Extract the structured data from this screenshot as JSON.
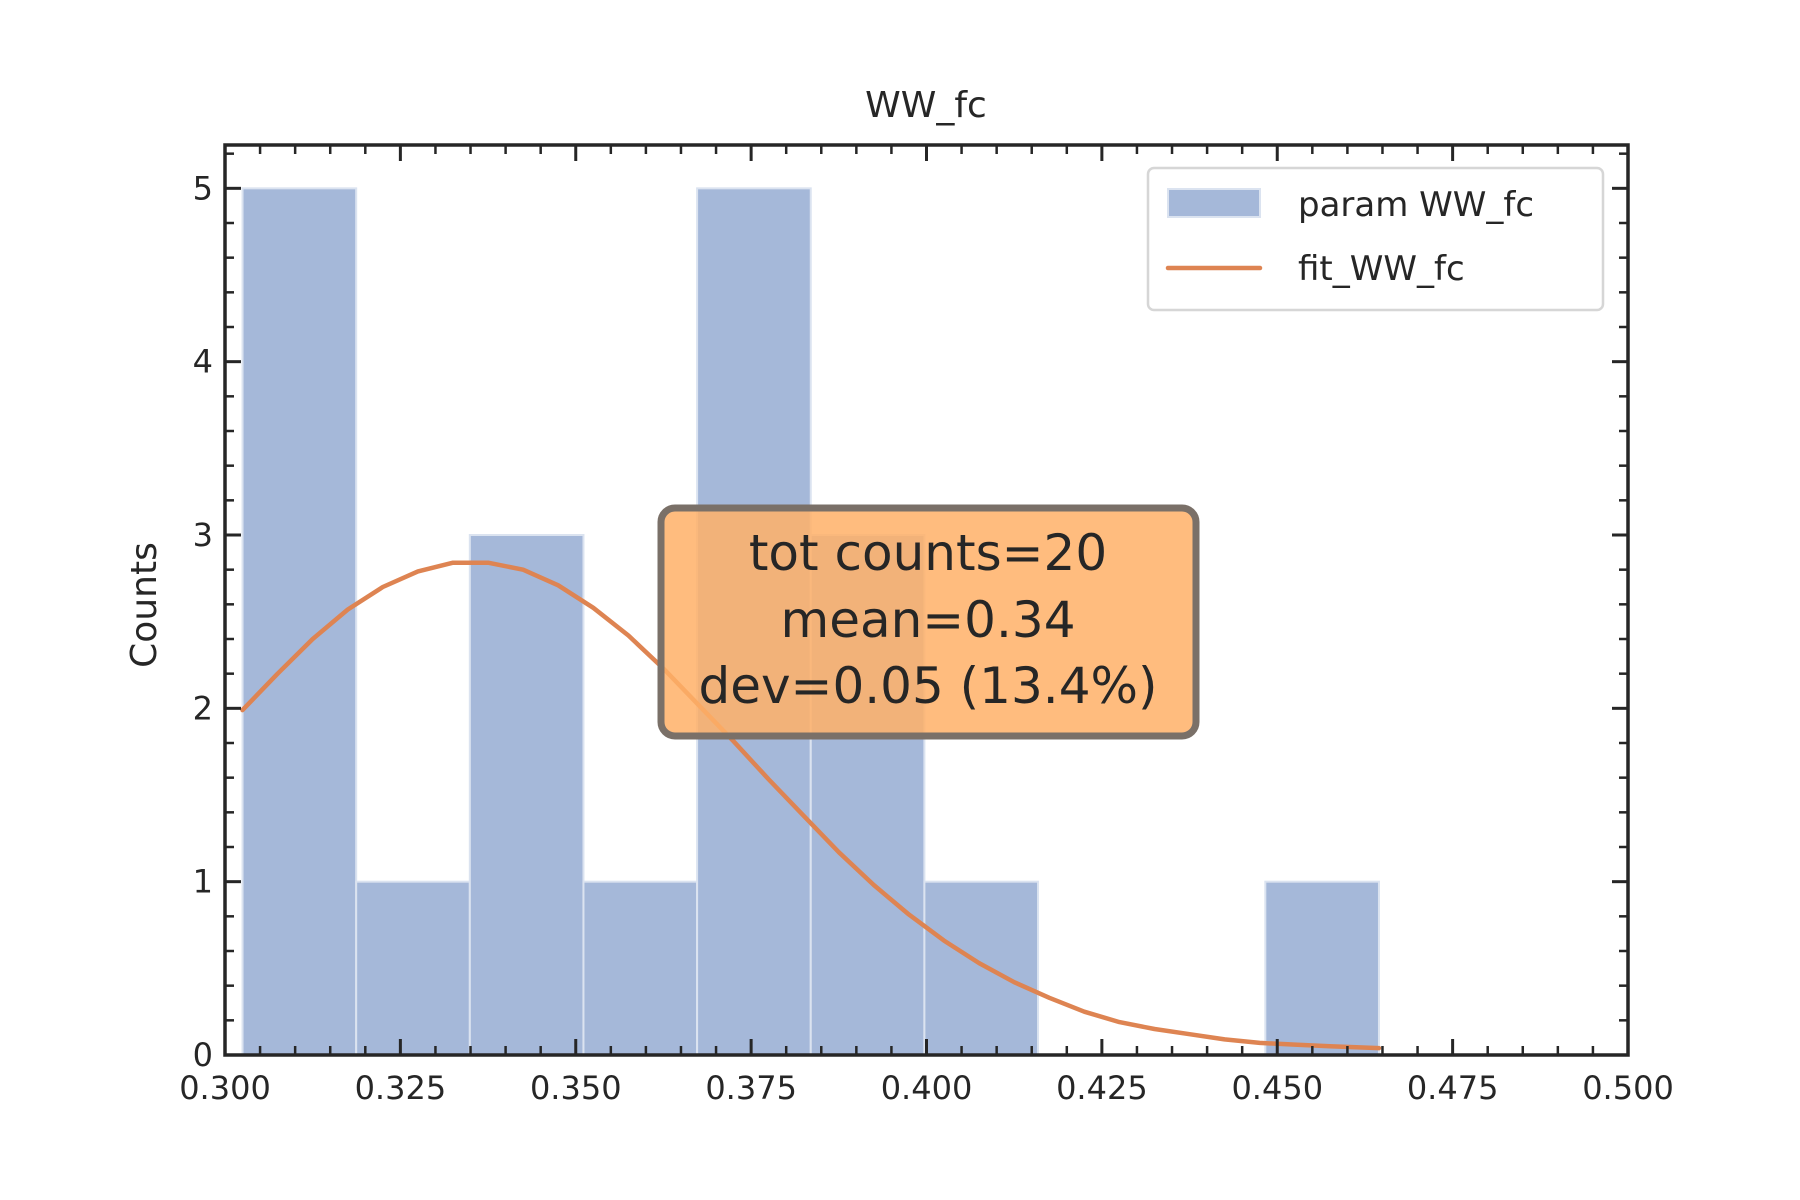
{
  "chart_data": {
    "type": "bar",
    "title": "WW_fc",
    "xlabel": "",
    "ylabel": "Counts",
    "xlim": [
      0.3,
      0.5
    ],
    "ylim": [
      0,
      5.25
    ],
    "xticks": [
      0.3,
      0.325,
      0.35,
      0.375,
      0.4,
      0.425,
      0.45,
      0.475,
      0.5
    ],
    "xtick_labels": [
      "0.300",
      "0.325",
      "0.350",
      "0.375",
      "0.400",
      "0.425",
      "0.450",
      "0.475",
      "0.500"
    ],
    "yticks": [
      0,
      1,
      2,
      3,
      4,
      5
    ],
    "ytick_labels": [
      "0",
      "1",
      "2",
      "3",
      "4",
      "5"
    ],
    "grid": false,
    "legend_position": "top-right",
    "histogram": {
      "name": "param WW_fc",
      "color": "#a5b8d9",
      "edge_color": "#dbe3f0",
      "bin_edges": [
        0.3025,
        0.3187,
        0.3349,
        0.3511,
        0.3673,
        0.3835,
        0.3997,
        0.4159,
        0.4321,
        0.4483,
        0.4645
      ],
      "counts": [
        5,
        1,
        3,
        1,
        5,
        3,
        1,
        0,
        0,
        1
      ]
    },
    "fit": {
      "name": "fit_WW_fc",
      "color": "#de8452",
      "x": [
        0.3025,
        0.3075,
        0.3125,
        0.3175,
        0.3225,
        0.3275,
        0.3325,
        0.3375,
        0.3425,
        0.3475,
        0.3525,
        0.3575,
        0.3625,
        0.3675,
        0.3725,
        0.3775,
        0.3825,
        0.3875,
        0.3925,
        0.3975,
        0.4025,
        0.4075,
        0.4125,
        0.4175,
        0.4225,
        0.4275,
        0.4325,
        0.4375,
        0.4425,
        0.4475,
        0.4525,
        0.4575,
        0.4645
      ],
      "y": [
        1.99,
        2.2,
        2.4,
        2.57,
        2.7,
        2.79,
        2.84,
        2.84,
        2.8,
        2.71,
        2.58,
        2.42,
        2.23,
        2.02,
        1.81,
        1.59,
        1.38,
        1.17,
        0.98,
        0.81,
        0.66,
        0.53,
        0.42,
        0.33,
        0.25,
        0.19,
        0.15,
        0.12,
        0.09,
        0.07,
        0.06,
        0.05,
        0.04
      ]
    },
    "annotation": {
      "lines": [
        "tot counts=20",
        "mean=0.34",
        "dev=0.05 (13.4%)"
      ],
      "box_color": "#ffb067",
      "border_color": "#7a7068"
    }
  }
}
